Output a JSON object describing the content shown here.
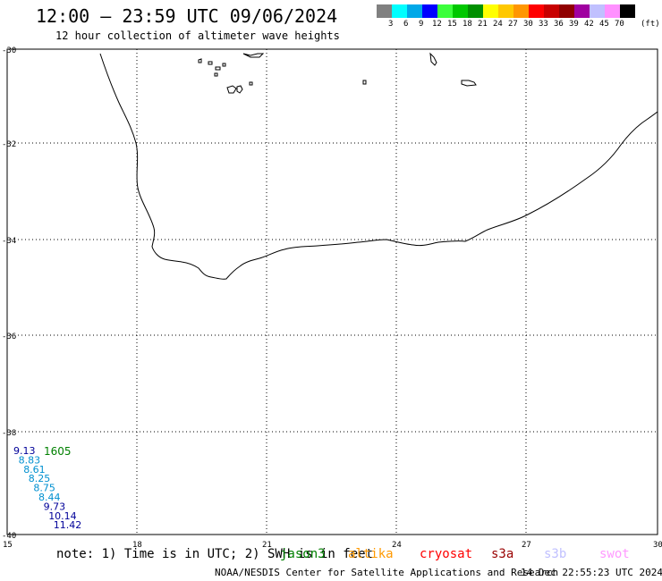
{
  "title": "12:00 – 23:59 UTC 09/06/2024",
  "subtitle": "12 hour collection of altimeter wave heights",
  "legend": {
    "unit": "(ft)",
    "colors": [
      "#808080",
      "#00ffff",
      "#00a8e8",
      "#0000ff",
      "#3cff3c",
      "#00c800",
      "#009000",
      "#ffff00",
      "#ffc800",
      "#ff9600",
      "#ff0000",
      "#c80000",
      "#900000",
      "#a000a0",
      "#c0c0ff",
      "#ff90ff",
      "#000000"
    ],
    "labels": [
      "3",
      "6",
      "9",
      "12",
      "15",
      "18",
      "21",
      "24",
      "27",
      "30",
      "33",
      "36",
      "39",
      "42",
      "45",
      "70"
    ]
  },
  "map": {
    "lat_labels": [
      "-30",
      "-32",
      "-34",
      "-36",
      "-38",
      "-40"
    ],
    "lon_labels": [
      "15",
      "18",
      "21",
      "24",
      "27",
      "30"
    ]
  },
  "observations": [
    {
      "value": "9.13",
      "color": "#000099"
    },
    {
      "value": "8.83",
      "color": "#0090d0"
    },
    {
      "value": "8.61",
      "color": "#0090d0"
    },
    {
      "value": "8.25",
      "color": "#0090d0"
    },
    {
      "value": "8.75",
      "color": "#0090d0"
    },
    {
      "value": "8.44",
      "color": "#0090d0"
    },
    {
      "value": "9.73",
      "color": "#000099"
    },
    {
      "value": "10.14",
      "color": "#000099"
    },
    {
      "value": "11.42",
      "color": "#000099"
    }
  ],
  "pass_time": {
    "value": "1605",
    "color": "#008000"
  },
  "footer": {
    "note": "note: 1) Time is in UTC; 2) SWH is in feet",
    "satellites": [
      {
        "name": "jason3",
        "color": "#008000"
      },
      {
        "name": "altika",
        "color": "#ff9900"
      },
      {
        "name": "cryosat",
        "color": "#ff0000"
      },
      {
        "name": "s3a",
        "color": "#990000"
      },
      {
        "name": "s3b",
        "color": "#c0c0ff"
      },
      {
        "name": "swot",
        "color": "#ff99ff"
      }
    ],
    "credit": "NOAA/NESDIS Center for Satellite Applications and Research",
    "timestamp": "14 Dec 22:55:23 UTC 2024"
  }
}
